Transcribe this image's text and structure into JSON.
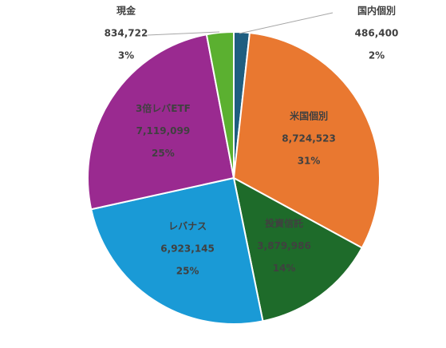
{
  "chart_data": {
    "type": "pie",
    "title": "",
    "legend": "none",
    "start_angle_deg": 0,
    "direction": "clockwise",
    "slices": [
      {
        "name": "国内個別",
        "value": 486400,
        "value_label": "486,400",
        "percent_label": "2%",
        "color": "#1f5e80",
        "label_position": "outside"
      },
      {
        "name": "米国個別",
        "value": 8724523,
        "value_label": "8,724,523",
        "percent_label": "31%",
        "color": "#e97830",
        "label_position": "inside"
      },
      {
        "name": "投資信託",
        "value": 3879986,
        "value_label": "3,879,986",
        "percent_label": "14%",
        "color": "#1e6b2a",
        "label_position": "inside"
      },
      {
        "name": "レバナス",
        "value": 6923145,
        "value_label": "6,923,145",
        "percent_label": "25%",
        "color": "#1a9ad6",
        "label_position": "inside"
      },
      {
        "name": "3倍レバETF",
        "value": 7119099,
        "value_label": "7,119,099",
        "percent_label": "25%",
        "color": "#9a2a90",
        "label_position": "inside"
      },
      {
        "name": "現金",
        "value": 834722,
        "value_label": "834,722",
        "percent_label": "3%",
        "color": "#5bb030",
        "label_position": "outside"
      }
    ],
    "label_text_color": "#404040",
    "leader_line_color": "#a6a6a6",
    "slice_border_color": "#ffffff"
  }
}
